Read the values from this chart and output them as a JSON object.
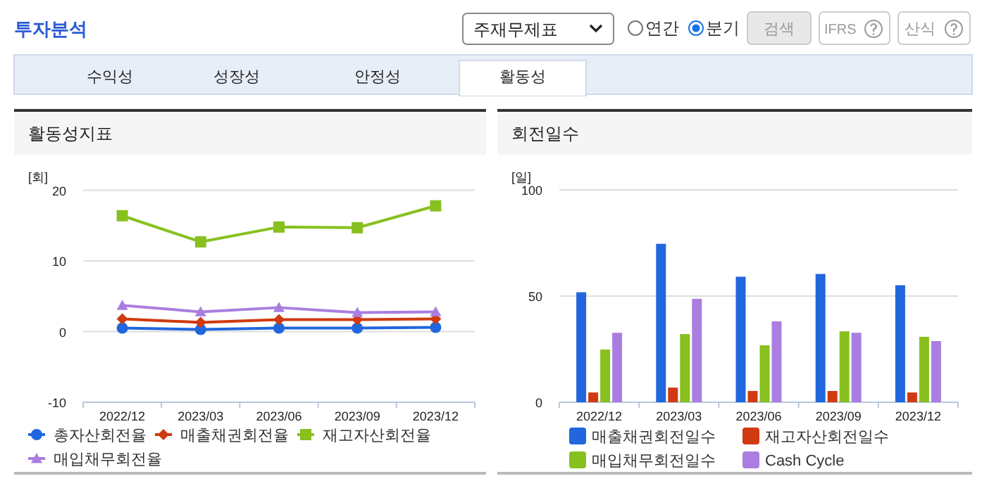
{
  "chart_data": [
    {
      "type": "line",
      "title": "활동성지표",
      "ylabel": "[회]",
      "categories": [
        "2022/12",
        "2023/03",
        "2023/06",
        "2023/09",
        "2023/12"
      ],
      "ylim": [
        -10,
        20
      ],
      "yticks": [
        -10,
        0,
        10,
        20
      ],
      "grid": "y",
      "legend": "bottom",
      "series": [
        {
          "name": "총자산회전율",
          "color": "#2266dd",
          "marker": "circle",
          "values": [
            0.5,
            0.3,
            0.5,
            0.5,
            0.6
          ]
        },
        {
          "name": "매출채권회전율",
          "color": "#d03a10",
          "marker": "diamond",
          "values": [
            1.8,
            1.3,
            1.7,
            1.7,
            1.8
          ]
        },
        {
          "name": "재고자산회전율",
          "color": "#88c020",
          "marker": "square",
          "values": [
            16.4,
            12.7,
            14.8,
            14.7,
            17.8
          ]
        },
        {
          "name": "매입채무회전율",
          "color": "#aa7ee0",
          "marker": "triangle",
          "values": [
            3.7,
            2.8,
            3.4,
            2.7,
            2.8
          ]
        }
      ],
      "annotations": [
        "투자분석",
        "주재무제표",
        "연간",
        "분기",
        "검색",
        "IFRS",
        "산식",
        "수익성",
        "성장성",
        "안정성",
        "활동성"
      ]
    },
    {
      "type": "bar",
      "title": "회전일수",
      "ylabel": "[일]",
      "categories": [
        "2022/12",
        "2023/03",
        "2023/06",
        "2023/09",
        "2023/12"
      ],
      "ylim": [
        0,
        100
      ],
      "yticks": [
        0,
        50,
        100
      ],
      "grid": "y",
      "legend": "bottom",
      "series": [
        {
          "name": "매출채권회전일수",
          "color": "#2266dd",
          "values": [
            51.8,
            74.6,
            59.1,
            60.4,
            55.1
          ]
        },
        {
          "name": "재고자산회전일수",
          "color": "#d03a10",
          "values": [
            4.6,
            6.9,
            5.3,
            5.3,
            4.6
          ]
        },
        {
          "name": "매입채무회전일수",
          "color": "#88c020",
          "values": [
            24.8,
            32.1,
            26.8,
            33.4,
            30.8
          ]
        },
        {
          "name": "Cash Cycle",
          "color": "#aa7ee0",
          "values": [
            32.7,
            48.7,
            38.1,
            32.7,
            28.8
          ]
        }
      ]
    }
  ]
}
